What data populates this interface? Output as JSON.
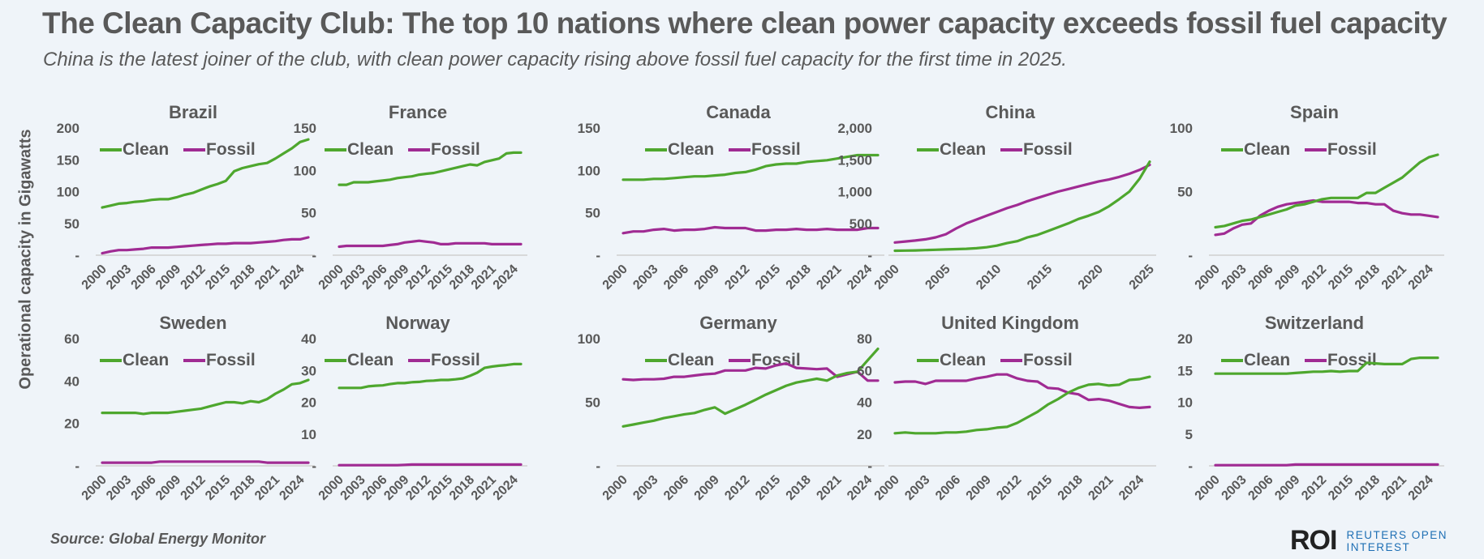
{
  "header": {
    "title": "The Clean Capacity Club: The top 10 nations where clean power capacity exceeds fossil fuel capacity",
    "subtitle": "China is the latest joiner of the club, with clean power capacity rising above fossil fuel capacity for the first time in 2025."
  },
  "footer": {
    "source": "Source:  Global Energy Monitor",
    "logo_mark": "ROI",
    "logo_line1": "REUTERS OPEN",
    "logo_line2": "INTEREST"
  },
  "colors": {
    "clean": "#4ea72e",
    "fossil": "#a02b93",
    "text": "#595959",
    "axis": "#d0d0d0",
    "background": "#eff4f9"
  },
  "chart_data": {
    "type": "line",
    "ylabel": "Operational capacity in Gigawatts",
    "legend": [
      "Clean",
      "Fossil"
    ],
    "legend_placement": "top",
    "grid": false,
    "years": [
      2000,
      2001,
      2002,
      2003,
      2004,
      2005,
      2006,
      2007,
      2008,
      2009,
      2010,
      2011,
      2012,
      2013,
      2014,
      2015,
      2016,
      2017,
      2018,
      2019,
      2020,
      2021,
      2022,
      2023,
      2024,
      2025
    ],
    "panels": [
      {
        "country": "Brazil",
        "ylim": [
          0,
          200
        ],
        "yticks": [
          "-",
          "50",
          "100",
          "150",
          "200"
        ],
        "ytick_values": [
          0,
          50,
          100,
          150,
          200
        ],
        "xticks": [
          "2000",
          "2003",
          "2006",
          "2009",
          "2012",
          "2015",
          "2018",
          "2021",
          "2024"
        ],
        "series": [
          {
            "name": "Clean",
            "values": [
              75,
              78,
              81,
              82,
              84,
              85,
              87,
              88,
              88,
              91,
              95,
              98,
              103,
              108,
              112,
              117,
              132,
              137,
              140,
              143,
              145,
              152,
              160,
              168,
              178,
              182
            ]
          },
          {
            "name": "Fossil",
            "values": [
              3,
              6,
              8,
              8,
              9,
              10,
              12,
              12,
              12,
              13,
              14,
              15,
              16,
              17,
              18,
              18,
              19,
              19,
              19,
              20,
              21,
              22,
              24,
              25,
              25,
              28
            ]
          }
        ]
      },
      {
        "country": "France",
        "ylim": [
          0,
          150
        ],
        "yticks": [
          "-",
          "50",
          "100",
          "150"
        ],
        "ytick_values": [
          0,
          50,
          100,
          150
        ],
        "xticks": [
          "2000",
          "2003",
          "2006",
          "2009",
          "2012",
          "2015",
          "2018",
          "2021",
          "2024"
        ],
        "series": [
          {
            "name": "Clean",
            "values": [
              83,
              83,
              86,
              86,
              86,
              87,
              88,
              89,
              91,
              92,
              93,
              95,
              96,
              97,
              99,
              101,
              103,
              105,
              107,
              106,
              110,
              112,
              114,
              120,
              121,
              121
            ]
          },
          {
            "name": "Fossil",
            "values": [
              10,
              11,
              11,
              11,
              11,
              11,
              11,
              12,
              13,
              15,
              16,
              17,
              16,
              15,
              13,
              13,
              14,
              14,
              14,
              14,
              14,
              13,
              13,
              13,
              13,
              13
            ]
          }
        ]
      },
      {
        "country": "Canada",
        "ylim": [
          0,
          150
        ],
        "yticks": [
          "-",
          "50",
          "100",
          "150"
        ],
        "ytick_values": [
          0,
          50,
          100,
          150
        ],
        "xticks": [
          "2000",
          "2003",
          "2006",
          "2009",
          "2012",
          "2015",
          "2018",
          "2021",
          "2024"
        ],
        "series": [
          {
            "name": "Clean",
            "values": [
              89,
              89,
              89,
              90,
              90,
              91,
              92,
              93,
              93,
              94,
              95,
              97,
              98,
              101,
              105,
              107,
              108,
              108,
              110,
              111,
              112,
              114,
              116,
              118,
              118,
              118
            ]
          },
          {
            "name": "Fossil",
            "values": [
              26,
              28,
              28,
              30,
              31,
              29,
              30,
              30,
              31,
              33,
              32,
              32,
              32,
              29,
              29,
              30,
              30,
              31,
              30,
              30,
              31,
              30,
              30,
              30,
              32,
              32
            ]
          }
        ]
      },
      {
        "country": "China",
        "ylim": [
          0,
          2000
        ],
        "yticks": [
          "-",
          "500",
          "1,000",
          "1,500",
          "2,000"
        ],
        "ytick_values": [
          0,
          500,
          1000,
          1500,
          2000
        ],
        "xticks": [
          "2000",
          "2005",
          "2010",
          "2015",
          "2020",
          "2025"
        ],
        "series": [
          {
            "name": "Clean",
            "values": [
              70,
              72,
              75,
              80,
              85,
              90,
              95,
              100,
              110,
              125,
              150,
              190,
              220,
              280,
              320,
              380,
              440,
              500,
              570,
              620,
              680,
              770,
              880,
              1000,
              1200,
              1470
            ]
          },
          {
            "name": "Fossil",
            "values": [
              200,
              215,
              230,
              250,
              280,
              330,
              420,
              500,
              560,
              620,
              680,
              740,
              790,
              850,
              900,
              950,
              1000,
              1040,
              1080,
              1120,
              1160,
              1190,
              1230,
              1280,
              1340,
              1420
            ]
          }
        ]
      },
      {
        "country": "Spain",
        "ylim": [
          0,
          100
        ],
        "yticks": [
          "-",
          "50",
          "100"
        ],
        "ytick_values": [
          0,
          50,
          100
        ],
        "xticks": [
          "2000",
          "2003",
          "2006",
          "2009",
          "2012",
          "2015",
          "2018",
          "2021",
          "2024"
        ],
        "series": [
          {
            "name": "Clean",
            "values": [
              22,
              23,
              25,
              27,
              28,
              30,
              32,
              34,
              36,
              39,
              40,
              42,
              44,
              45,
              45,
              45,
              45,
              49,
              49,
              53,
              57,
              61,
              67,
              73,
              77,
              79
            ]
          },
          {
            "name": "Fossil",
            "values": [
              16,
              17,
              21,
              24,
              25,
              31,
              35,
              38,
              40,
              41,
              42,
              43,
              42,
              42,
              42,
              42,
              41,
              41,
              40,
              40,
              35,
              33,
              32,
              32,
              31,
              30
            ]
          }
        ]
      },
      {
        "country": "Sweden",
        "ylim": [
          0,
          60
        ],
        "yticks": [
          "-",
          "20",
          "40",
          "60"
        ],
        "ytick_values": [
          0,
          20,
          40,
          60
        ],
        "xticks": [
          "2000",
          "2003",
          "2006",
          "2009",
          "2012",
          "2015",
          "2018",
          "2021",
          "2024"
        ],
        "series": [
          {
            "name": "Clean",
            "values": [
              25,
              25,
              25,
              25,
              25,
              24.5,
              25,
              25,
              25,
              25.5,
              26,
              26.5,
              27,
              28,
              29,
              30,
              30,
              29.5,
              30.5,
              30,
              31.5,
              34,
              36,
              38.5,
              39,
              40.5
            ]
          },
          {
            "name": "Fossil",
            "values": [
              1.5,
              1.5,
              1.5,
              1.5,
              1.5,
              1.5,
              1.5,
              2,
              2,
              2,
              2,
              2,
              2,
              2,
              2,
              2,
              2,
              2,
              2,
              2,
              1.5,
              1.5,
              1.5,
              1.5,
              1.5,
              1.5
            ]
          }
        ]
      },
      {
        "country": "Norway",
        "ylim": [
          0,
          40
        ],
        "yticks": [
          "-",
          "10",
          "20",
          "30",
          "40"
        ],
        "ytick_values": [
          0,
          10,
          20,
          30,
          40
        ],
        "xticks": [
          "2000",
          "2003",
          "2006",
          "2009",
          "2012",
          "2015",
          "2018",
          "2021",
          "2024"
        ],
        "series": [
          {
            "name": "Clean",
            "values": [
              24.5,
              24.5,
              24.5,
              24.5,
              25,
              25.2,
              25.3,
              25.7,
              26,
              26,
              26.3,
              26.4,
              26.7,
              26.8,
              27,
              27,
              27.2,
              27.5,
              28.3,
              29.3,
              30.8,
              31.2,
              31.5,
              31.7,
              32,
              32
            ]
          },
          {
            "name": "Fossil",
            "values": [
              0.2,
              0.2,
              0.2,
              0.2,
              0.2,
              0.2,
              0.2,
              0.2,
              0.2,
              0.3,
              0.4,
              0.4,
              0.4,
              0.4,
              0.4,
              0.4,
              0.4,
              0.4,
              0.4,
              0.4,
              0.4,
              0.4,
              0.4,
              0.4,
              0.4,
              0.4
            ]
          }
        ]
      },
      {
        "country": "Germany",
        "ylim": [
          0,
          100
        ],
        "yticks": [
          "-",
          "50",
          "100"
        ],
        "ytick_values": [
          0,
          50,
          100
        ],
        "xticks": [
          "2000",
          "2003",
          "2006",
          "2009",
          "2012",
          "2015",
          "2018",
          "2021",
          "2024"
        ],
        "series": [
          {
            "name": "Clean",
            "values": [
              31,
              32.5,
              34,
              35.5,
              37.5,
              39,
              40.5,
              41.5,
              44,
              46,
              41,
              44.5,
              48,
              52,
              56,
              59.5,
              63,
              65.5,
              67,
              68.5,
              67,
              71,
              73,
              74,
              83,
              92
            ]
          },
          {
            "name": "Fossil",
            "values": [
              68,
              67.5,
              68,
              68,
              68.5,
              70,
              70,
              71,
              72,
              72.5,
              75,
              75,
              75,
              77,
              76.5,
              79,
              80.5,
              77,
              76.5,
              76,
              76.5,
              70,
              72,
              74,
              67,
              67
            ]
          }
        ]
      },
      {
        "country": "United Kingdom",
        "ylim": [
          0,
          80
        ],
        "yticks": [
          "-",
          "20",
          "40",
          "60",
          "80"
        ],
        "ytick_values": [
          0,
          20,
          40,
          60,
          80
        ],
        "xticks": [
          "2000",
          "2003",
          "2006",
          "2009",
          "2012",
          "2015",
          "2018",
          "2021",
          "2024"
        ],
        "series": [
          {
            "name": "Clean",
            "values": [
              20.5,
              21,
              20.5,
              20.5,
              20.5,
              21,
              21,
              21.5,
              22.5,
              23,
              24,
              24.5,
              27,
              30.5,
              34,
              38.5,
              42,
              46,
              49,
              51,
              51.5,
              50.5,
              51,
              54,
              54.5,
              56
            ]
          },
          {
            "name": "Fossil",
            "values": [
              52.5,
              53,
              53,
              51.5,
              53.5,
              53.5,
              53.5,
              53.5,
              55,
              56,
              57.5,
              57.5,
              55,
              53.5,
              53,
              49,
              48.5,
              46,
              45,
              41.5,
              42,
              41,
              39,
              37,
              36.5,
              37
            ]
          }
        ]
      },
      {
        "country": "Switzerland",
        "ylim": [
          0,
          20
        ],
        "yticks": [
          "-",
          "5",
          "10",
          "15",
          "20"
        ],
        "ytick_values": [
          0,
          5,
          10,
          15,
          20
        ],
        "xticks": [
          "2000",
          "2003",
          "2006",
          "2009",
          "2012",
          "2015",
          "2018",
          "2021",
          "2024"
        ],
        "series": [
          {
            "name": "Clean",
            "values": [
              14.5,
              14.5,
              14.5,
              14.5,
              14.5,
              14.5,
              14.5,
              14.5,
              14.5,
              14.6,
              14.7,
              14.8,
              14.8,
              14.9,
              14.8,
              14.9,
              14.9,
              16.2,
              16.1,
              16,
              16,
              16,
              16.8,
              17,
              17,
              17
            ]
          },
          {
            "name": "Fossil",
            "values": [
              0.1,
              0.1,
              0.1,
              0.1,
              0.1,
              0.1,
              0.1,
              0.1,
              0.1,
              0.2,
              0.2,
              0.2,
              0.2,
              0.2,
              0.2,
              0.2,
              0.2,
              0.2,
              0.2,
              0.2,
              0.2,
              0.2,
              0.2,
              0.2,
              0.2,
              0.2
            ]
          }
        ]
      }
    ]
  }
}
